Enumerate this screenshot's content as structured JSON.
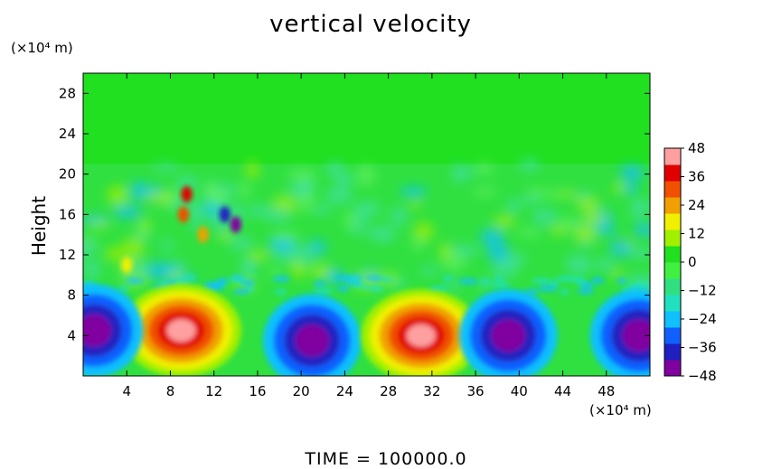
{
  "chart_data": {
    "type": "heatmap",
    "title": "vertical velocity",
    "ylabel": "Height",
    "x_unit": "(×10⁴ m)",
    "y_unit": "(×10⁴ m)",
    "x_ticks": [
      4,
      8,
      12,
      16,
      20,
      24,
      28,
      32,
      36,
      40,
      44,
      48
    ],
    "y_ticks": [
      4,
      8,
      12,
      16,
      20,
      24,
      28
    ],
    "xlim": [
      0,
      52
    ],
    "ylim": [
      0,
      30
    ],
    "colorbar": {
      "ticks": [
        48,
        36,
        24,
        12,
        0,
        -12,
        -24,
        -36,
        -48
      ],
      "range": [
        -48,
        48
      ],
      "colors": [
        "#8000a0",
        "#2020c0",
        "#1060ff",
        "#10c0ff",
        "#20e0c0",
        "#30e080",
        "#40f040",
        "#20e020",
        "#a0f000",
        "#f0f000",
        "#f0a000",
        "#f05000",
        "#e00000",
        "#ffa0a0"
      ]
    },
    "features": [
      {
        "name": "updraft",
        "x": 9,
        "y": 4.5,
        "value": 48
      },
      {
        "name": "downdraft",
        "x": 21,
        "y": 3.5,
        "value": -48
      },
      {
        "name": "updraft",
        "x": 31,
        "y": 4,
        "value": 48
      },
      {
        "name": "downdraft",
        "x": 39,
        "y": 4,
        "value": -48
      },
      {
        "name": "downdraft",
        "x": 1,
        "y": 4.5,
        "value": -48
      },
      {
        "name": "downdraft",
        "x": 51,
        "y": 4,
        "value": -44
      }
    ]
  },
  "footer": {
    "time_label": "TIME  =  100000.0"
  }
}
